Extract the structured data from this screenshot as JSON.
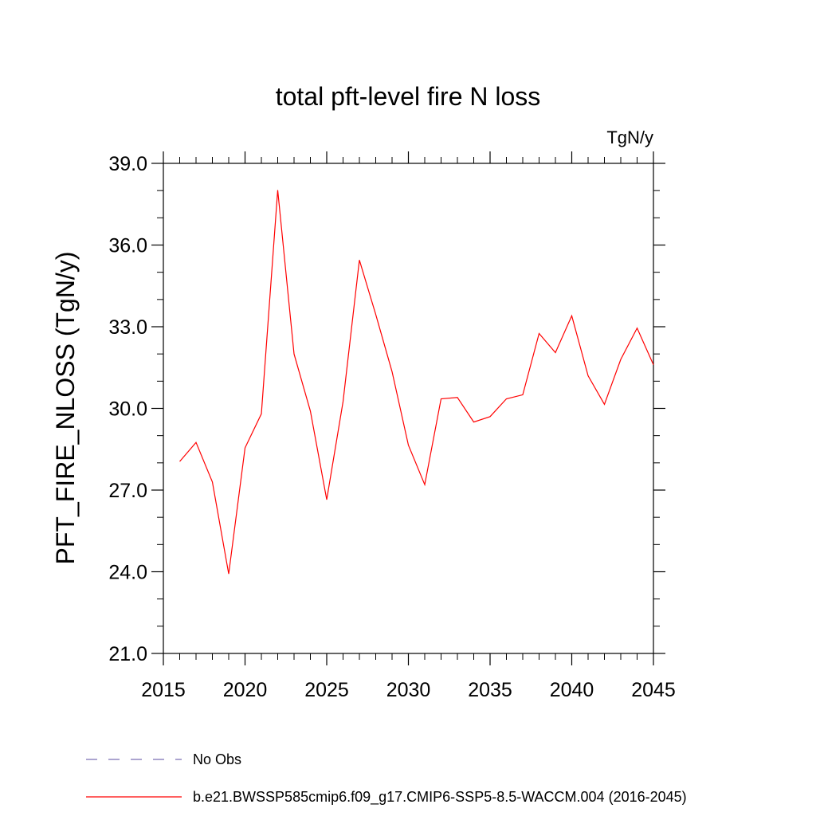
{
  "chart_data": {
    "type": "line",
    "title": "total pft-level fire N loss",
    "units_label": "TgN/y",
    "xlabel": "",
    "ylabel": "PFT_FIRE_NLOSS  (TgN/y)",
    "xlim": [
      2015,
      2045
    ],
    "ylim": [
      21.0,
      39.0
    ],
    "x_ticks": [
      2015,
      2020,
      2025,
      2030,
      2035,
      2040,
      2045
    ],
    "x_tick_labels": [
      "2015",
      "2020",
      "2025",
      "2030",
      "2035",
      "2040",
      "2045"
    ],
    "y_ticks": [
      21.0,
      24.0,
      27.0,
      30.0,
      33.0,
      36.0,
      39.0
    ],
    "y_tick_labels": [
      "21.0",
      "24.0",
      "27.0",
      "30.0",
      "33.0",
      "36.0",
      "39.0"
    ],
    "grid": false,
    "legend_position": "bottom",
    "series": [
      {
        "name": "b.e21.BWSSP585cmip6.f09_g17.CMIP6-SSP5-8.5-WACCM.004 (2016-2045)",
        "color": "#ff0000",
        "style": "solid",
        "x": [
          2016,
          2017,
          2018,
          2019,
          2020,
          2021,
          2022,
          2023,
          2024,
          2025,
          2026,
          2027,
          2028,
          2029,
          2030,
          2031,
          2032,
          2033,
          2034,
          2035,
          2036,
          2037,
          2038,
          2039,
          2040,
          2041,
          2042,
          2043,
          2044,
          2045
        ],
        "y": [
          28.05,
          28.75,
          27.3,
          23.92,
          28.55,
          29.8,
          38.02,
          32.0,
          29.9,
          26.65,
          30.25,
          35.45,
          33.45,
          31.35,
          28.65,
          27.2,
          30.35,
          30.4,
          29.5,
          29.7,
          30.35,
          30.5,
          32.75,
          32.05,
          33.4,
          31.2,
          30.15,
          31.8,
          32.95,
          31.6
        ]
      },
      {
        "name": "No Obs",
        "color": "#7b6fb3",
        "style": "dashed",
        "x": [],
        "y": []
      }
    ]
  }
}
